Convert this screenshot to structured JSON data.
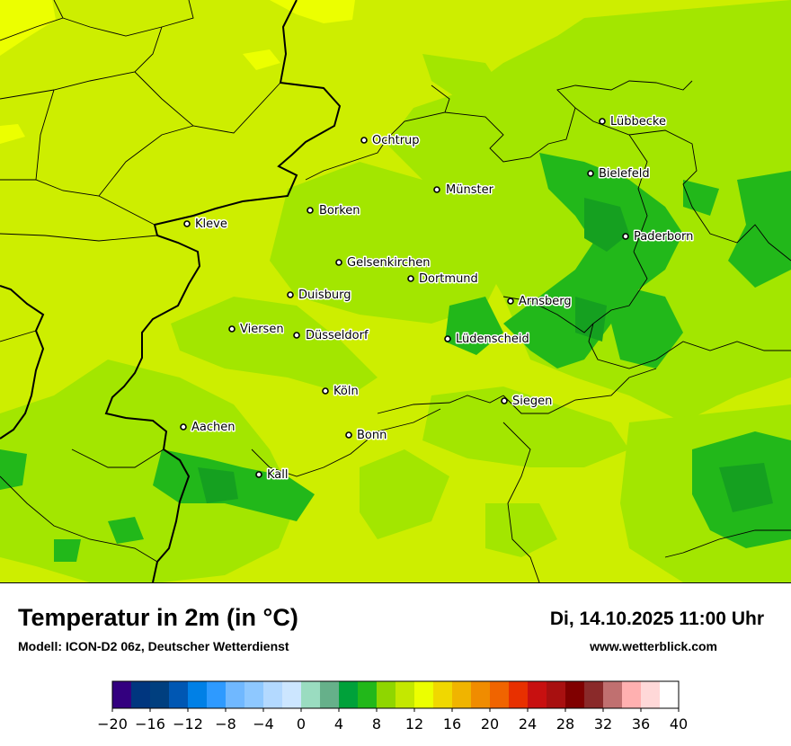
{
  "header": {
    "title": "Temperatur in 2m (in °C)",
    "subtitle": "Modell: ICON-D2 06z, Deutscher Wetterdienst",
    "datetime": "Di, 14.10.2025 11:00 Uhr",
    "website": "www.wetterblick.com"
  },
  "map": {
    "cities": [
      {
        "name": "Lübbecke"
      },
      {
        "name": "Ochtrup"
      },
      {
        "name": "Bielefeld"
      },
      {
        "name": "Münster"
      },
      {
        "name": "Borken"
      },
      {
        "name": "Kleve"
      },
      {
        "name": "Paderborn"
      },
      {
        "name": "Gelsenkirchen"
      },
      {
        "name": "Dortmund"
      },
      {
        "name": "Duisburg"
      },
      {
        "name": "Arnsberg"
      },
      {
        "name": "Viersen"
      },
      {
        "name": "Düsseldorf"
      },
      {
        "name": "Lüdenscheid"
      },
      {
        "name": "Köln"
      },
      {
        "name": "Siegen"
      },
      {
        "name": "Aachen"
      },
      {
        "name": "Bonn"
      },
      {
        "name": "Kall"
      }
    ]
  },
  "legend": {
    "min": -20,
    "max": 40,
    "step": 2,
    "tick_labels": [
      "−20",
      "−16",
      "−12",
      "−8",
      "−4",
      "0",
      "4",
      "8",
      "12",
      "16",
      "20",
      "24",
      "28",
      "32",
      "36",
      "40"
    ],
    "colors": [
      "#33007f",
      "#00367f",
      "#003f7f",
      "#0057b3",
      "#0080e6",
      "#2e9aff",
      "#70b8ff",
      "#8ec8ff",
      "#b3d9ff",
      "#cce6ff",
      "#9adcc0",
      "#66b08a",
      "#00a13a",
      "#22b81a",
      "#8fd600",
      "#c4e800",
      "#ecff00",
      "#f0d800",
      "#f0b400",
      "#f08c00",
      "#f06400",
      "#e83000",
      "#c81010",
      "#a81010",
      "#800000",
      "#8a2a2a",
      "#c07070",
      "#ffb0b0",
      "#ffd8d8"
    ]
  }
}
